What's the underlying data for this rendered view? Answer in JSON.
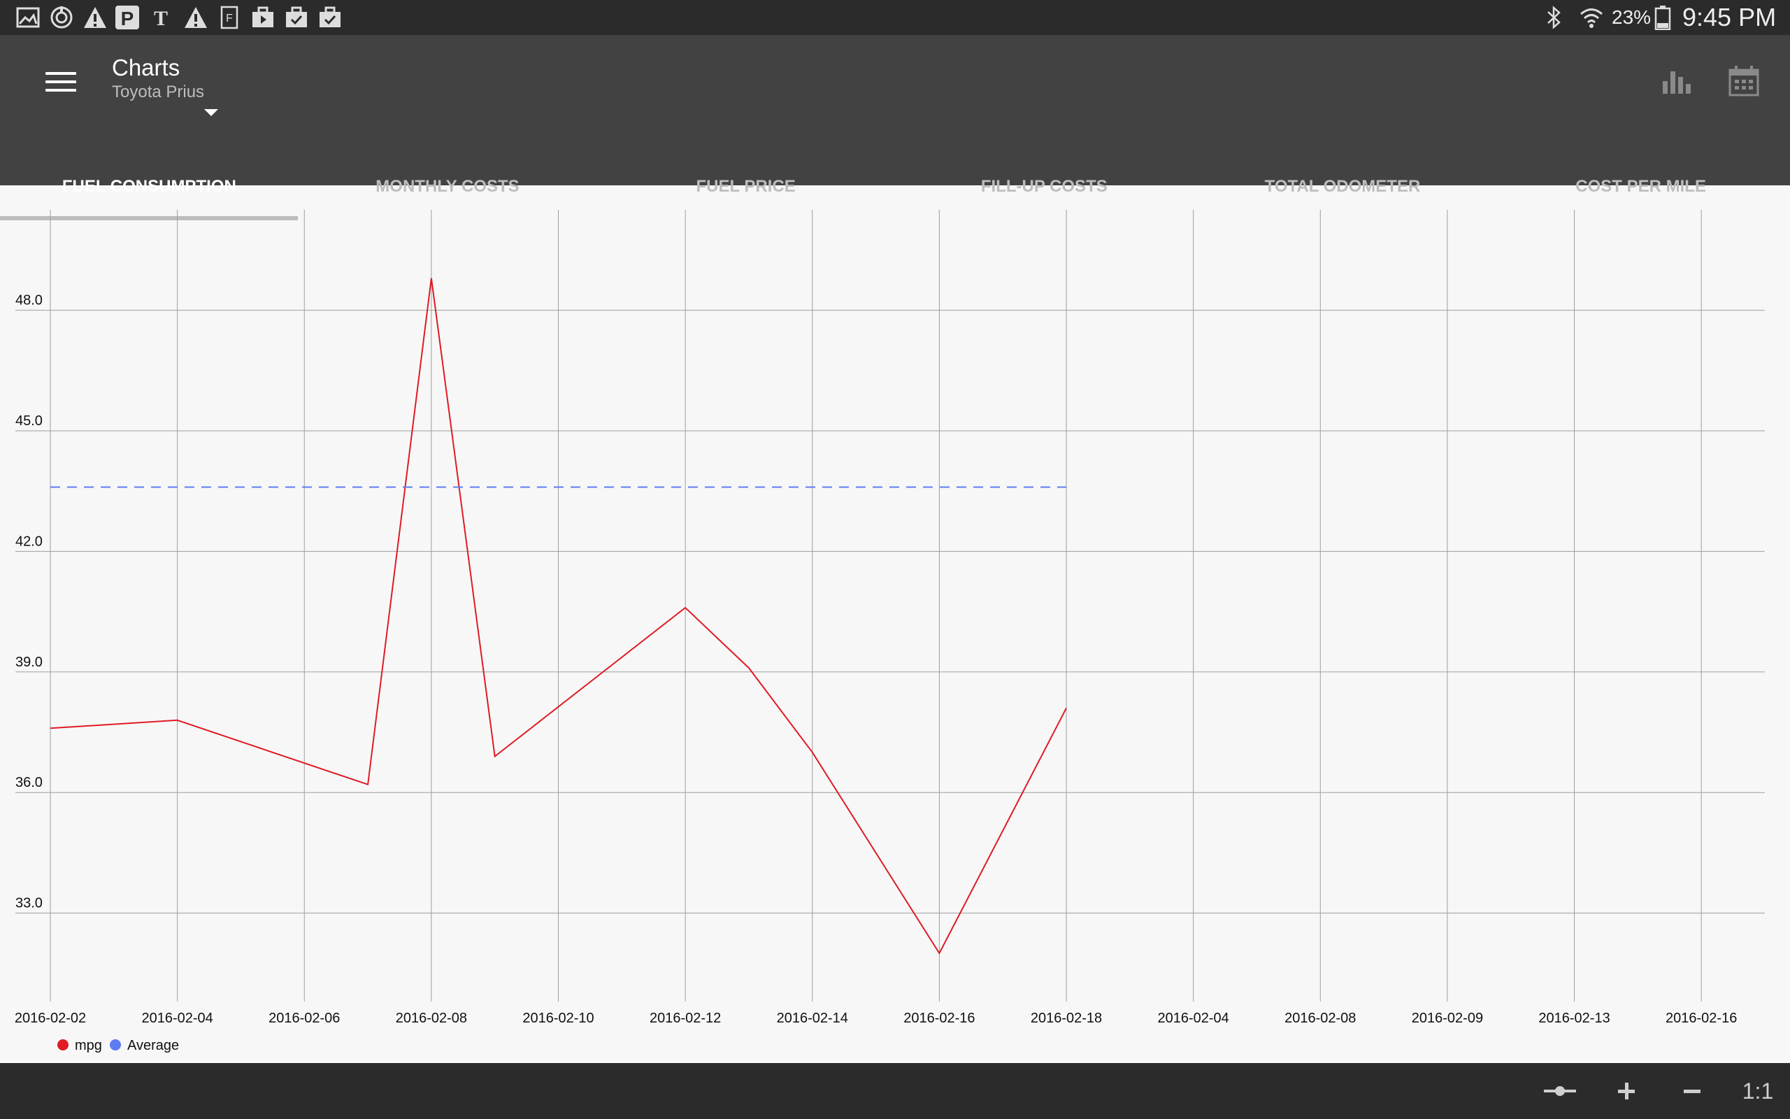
{
  "status_bar": {
    "battery": "23%",
    "time": "9:45 PM",
    "icons": [
      "gallery-icon",
      "sync-icon",
      "warning-icon",
      "parking-icon",
      "nytimes-icon",
      "warning-icon",
      "flipboard-icon",
      "briefcase-icon",
      "briefcase-icon",
      "briefcase-check-icon",
      "bluetooth-icon",
      "wifi-icon",
      "battery-icon"
    ]
  },
  "app_bar": {
    "title": "Charts",
    "subtitle": "Toyota Prius",
    "actions": [
      "bar-chart-icon",
      "calendar-icon"
    ]
  },
  "tabs": [
    {
      "label": "FUEL CONSUMPTION",
      "active": true
    },
    {
      "label": "MONTHLY COSTS",
      "active": false
    },
    {
      "label": "FUEL PRICE",
      "active": false
    },
    {
      "label": "FILL-UP COSTS",
      "active": false
    },
    {
      "label": "TOTAL ODOMETER",
      "active": false
    },
    {
      "label": "COST PER MILE",
      "active": false
    }
  ],
  "chart_data": {
    "type": "line",
    "x_tick_labels": [
      "2016-02-02",
      "2016-02-04",
      "2016-02-06",
      "2016-02-08",
      "2016-02-10",
      "2016-02-12",
      "2016-02-14",
      "2016-02-16",
      "2016-02-18",
      "2016-02-04",
      "2016-02-08",
      "2016-02-09",
      "2016-02-13",
      "2016-02-16"
    ],
    "y_ticks": [
      "33.0",
      "36.0",
      "39.0",
      "42.0",
      "45.0",
      "48.0"
    ],
    "ylim": [
      30.8,
      50.5
    ],
    "xlim": [
      0,
      27
    ],
    "series": [
      {
        "name": "mpg",
        "color": "#e01b24",
        "points": [
          [
            0,
            37.6
          ],
          [
            2,
            37.8
          ],
          [
            5,
            36.2
          ],
          [
            6,
            48.8
          ],
          [
            7,
            36.9
          ],
          [
            10,
            40.6
          ],
          [
            11,
            39.1
          ],
          [
            12,
            37.0
          ],
          [
            14,
            32.0
          ],
          [
            16,
            38.1
          ]
        ]
      },
      {
        "name": "Average",
        "color": "#5c7cf0",
        "dashed": true,
        "points": [
          [
            0,
            43.6
          ],
          [
            16,
            43.6
          ]
        ]
      }
    ],
    "grid": true,
    "legend": "bottom-left"
  },
  "bottom_bar": {
    "buttons": [
      "pan-icon",
      "zoom-in-icon",
      "zoom-out-icon"
    ],
    "zoom_reset_label": "1:1"
  }
}
